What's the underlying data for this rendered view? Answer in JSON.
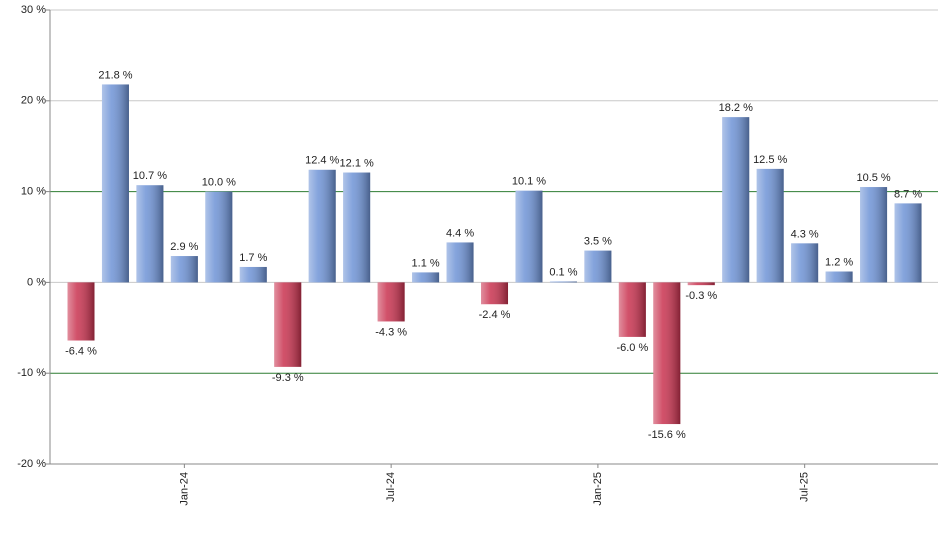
{
  "chart_data": {
    "type": "bar",
    "categories": [
      null,
      null,
      null,
      "Jan-24",
      null,
      null,
      null,
      null,
      null,
      "Jul-24",
      null,
      null,
      null,
      null,
      null,
      "Jan-25",
      null,
      null,
      null,
      null,
      null,
      "Jul-25",
      null,
      null,
      null
    ],
    "values": [
      -6.4,
      21.8,
      10.7,
      2.9,
      10.0,
      1.7,
      -9.3,
      12.4,
      12.1,
      -4.3,
      1.1,
      4.4,
      -2.4,
      10.1,
      0.1,
      3.5,
      -6.0,
      -15.6,
      -0.3,
      18.2,
      12.5,
      4.3,
      1.2,
      10.5,
      8.7
    ],
    "value_labels": [
      "-6.4 %",
      "21.8 %",
      "10.7 %",
      "2.9 %",
      "10.0 %",
      "1.7 %",
      "-9.3 %",
      "12.4 %",
      "12.1 %",
      "-4.3 %",
      "1.1 %",
      "4.4 %",
      "-2.4 %",
      "10.1 %",
      "0.1 %",
      "3.5 %",
      "-6.0 %",
      "-15.6 %",
      "-0.3 %",
      "18.2 %",
      "12.5 %",
      "4.3 %",
      "1.2 %",
      "10.5 %",
      "8.7 %"
    ],
    "positive_color": "#6e93d6",
    "negative_color": "#c9324f",
    "ylim": [
      -20,
      30
    ],
    "yticks": [
      {
        "value": -20,
        "label": "-20 %"
      },
      {
        "value": -10,
        "label": "-10 %"
      },
      {
        "value": 0,
        "label": "0 %"
      },
      {
        "value": 10,
        "label": "10 %"
      },
      {
        "value": 20,
        "label": "20 %"
      },
      {
        "value": 30,
        "label": "30 %"
      }
    ],
    "grid": true,
    "grid_color": "#c8c8c8",
    "highlight_values": [
      -10,
      10
    ],
    "highlight_color": "#2e7d32"
  }
}
